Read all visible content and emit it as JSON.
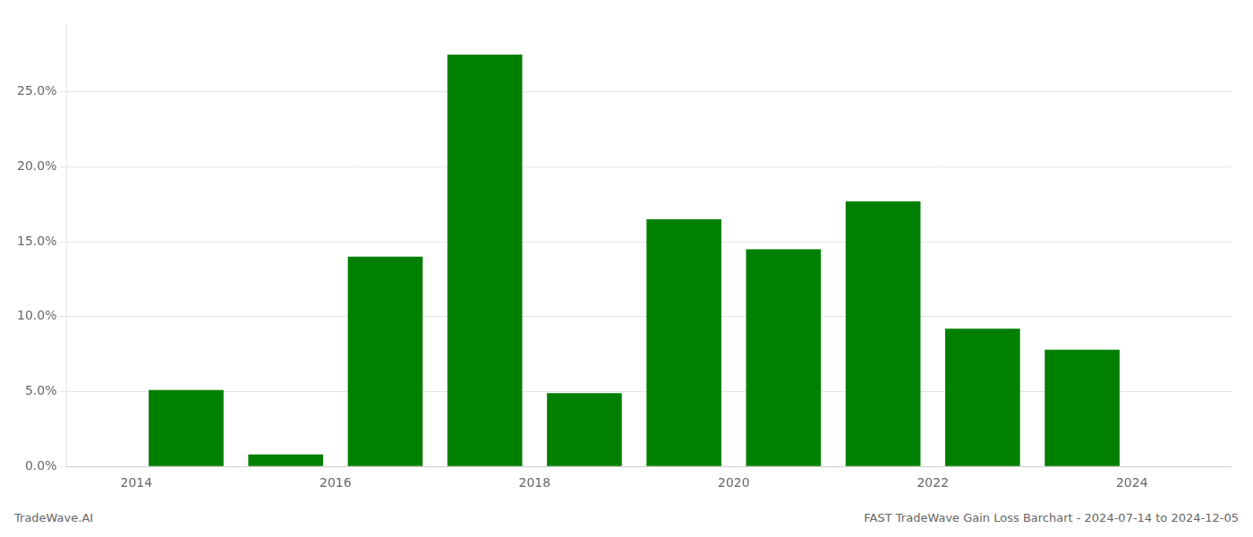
{
  "chart_data": {
    "type": "bar",
    "x": [
      2014.5,
      2015.5,
      2016.5,
      2017.5,
      2018.5,
      2019.5,
      2020.5,
      2021.5,
      2022.5,
      2023.5
    ],
    "values": [
      0.051,
      0.008,
      0.14,
      0.275,
      0.049,
      0.165,
      0.145,
      0.177,
      0.092,
      0.078
    ],
    "color": "#008000",
    "xlim": [
      2013.3,
      2025.0
    ],
    "xticks": [
      2014,
      2016,
      2018,
      2020,
      2022,
      2024
    ],
    "ylim": [
      0.0,
      0.295
    ],
    "yticks": [
      {
        "value": 0.0,
        "label": "0.0%"
      },
      {
        "value": 0.05,
        "label": "5.0%"
      },
      {
        "value": 0.1,
        "label": "10.0%"
      },
      {
        "value": 0.15,
        "label": "15.0%"
      },
      {
        "value": 0.2,
        "label": "20.0%"
      },
      {
        "value": 0.25,
        "label": "25.0%"
      }
    ],
    "grid": true,
    "annotations": [
      "TradeWave.AI",
      "FAST TradeWave Gain Loss Barchart - 2024-07-14 to 2024-12-05"
    ]
  }
}
